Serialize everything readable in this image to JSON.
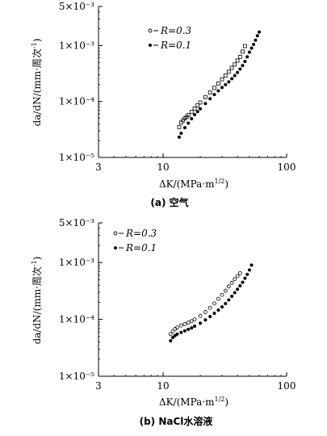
{
  "chart_data": [
    {
      "type": "scatter",
      "panel": "(a)",
      "caption": "(a) 空气",
      "xlabel": "ΔK/(MPa·m^1/2)",
      "ylabel": "da/dN/(mm·周次^-1)",
      "xscale": "log",
      "yscale": "log",
      "xlim": [
        3,
        100
      ],
      "ylim": [
        1e-05,
        0.005
      ],
      "xticks": [
        {
          "v": 3,
          "label": "3"
        },
        {
          "v": 10,
          "label": "10"
        },
        {
          "v": 100,
          "label": "100"
        }
      ],
      "yticks": [
        {
          "v": 1e-05,
          "label": "1×10⁻⁵"
        },
        {
          "v": 0.0001,
          "label": "1×10⁻⁴"
        },
        {
          "v": 0.001,
          "label": "1×10⁻³"
        },
        {
          "v": 0.005,
          "label": "5×10⁻³"
        }
      ],
      "legend_position": "top-center",
      "series": [
        {
          "name": "R=0.3",
          "marker": "open-square",
          "x": [
            13.5,
            14,
            14.5,
            15,
            15.5,
            16,
            17,
            18,
            19,
            20,
            22,
            24,
            26,
            28,
            30,
            32,
            34,
            36,
            38,
            40,
            42,
            44,
            46
          ],
          "y": [
            3.5e-05,
            4.2e-05,
            4.6e-05,
            5e-05,
            5.3e-05,
            5.7e-05,
            6.5e-05,
            7.5e-05,
            8.5e-05,
            9.6e-05,
            0.00012,
            0.000145,
            0.000175,
            0.00021,
            0.00025,
            0.00029,
            0.00034,
            0.0004,
            0.00046,
            0.00054,
            0.00063,
            0.00078,
            0.00098
          ]
        },
        {
          "name": "R=0.1",
          "marker": "filled-circle",
          "x": [
            13.5,
            14,
            15,
            16,
            17,
            18,
            19,
            20,
            22,
            24,
            26,
            28,
            30,
            32,
            34,
            36,
            38,
            40,
            42,
            44,
            46,
            48,
            50,
            52,
            54,
            56,
            58,
            60
          ],
          "y": [
            2.3e-05,
            2.7e-05,
            3.4e-05,
            4.1e-05,
            4.9e-05,
            5.8e-05,
            6.6e-05,
            7.4e-05,
            9.2e-05,
            0.000112,
            0.000133,
            0.000155,
            0.000178,
            0.0002,
            0.000225,
            0.000255,
            0.00029,
            0.00033,
            0.00038,
            0.00044,
            0.00052,
            0.00063,
            0.00076,
            0.0009,
            0.00105,
            0.00125,
            0.0015,
            0.00175
          ]
        }
      ]
    },
    {
      "type": "scatter",
      "panel": "(b)",
      "caption": "(b) NaCl水溶液",
      "xlabel": "ΔK/(MPa·m^1/2)",
      "ylabel": "da/dN/(mm·周次^-1)",
      "xscale": "log",
      "yscale": "log",
      "xlim": [
        3,
        100
      ],
      "ylim": [
        1e-05,
        0.005
      ],
      "xticks": [
        {
          "v": 3,
          "label": "3"
        },
        {
          "v": 10,
          "label": "10"
        },
        {
          "v": 100,
          "label": "100"
        }
      ],
      "yticks": [
        {
          "v": 1e-05,
          "label": "1×10⁻⁵"
        },
        {
          "v": 0.0001,
          "label": "1×10⁻⁴"
        },
        {
          "v": 0.001,
          "label": "1×10⁻³"
        },
        {
          "v": 0.005,
          "label": "5×10⁻³"
        }
      ],
      "legend_position": "top-left",
      "series": [
        {
          "name": "R=0.3",
          "marker": "open-circle",
          "x": [
            11.5,
            12,
            12.5,
            13,
            14,
            15,
            16,
            17,
            18,
            20,
            22,
            24,
            26,
            28,
            30,
            32,
            34,
            36,
            38,
            40,
            42
          ],
          "y": [
            5.5e-05,
            6.2e-05,
            6.8e-05,
            7.2e-05,
            7.8e-05,
            8.3e-05,
            8.8e-05,
            9.3e-05,
            0.0001,
            0.000115,
            0.000135,
            0.00016,
            0.00019,
            0.00023,
            0.00027,
            0.00032,
            0.00038,
            0.00044,
            0.00051,
            0.00058,
            0.00065
          ]
        },
        {
          "name": "R=0.1",
          "marker": "filled-circle",
          "x": [
            11.5,
            12,
            12.5,
            13,
            14,
            15,
            16,
            17,
            18,
            20,
            22,
            24,
            26,
            28,
            30,
            32,
            34,
            36,
            38,
            40,
            42,
            44,
            46,
            48,
            50,
            52
          ],
          "y": [
            4.2e-05,
            4.8e-05,
            5.2e-05,
            5.5e-05,
            5.9e-05,
            6.3e-05,
            6.7e-05,
            7.1e-05,
            7.6e-05,
            8.6e-05,
            9.8e-05,
            0.000112,
            0.000128,
            0.000146,
            0.000166,
            0.00019,
            0.00022,
            0.000255,
            0.000295,
            0.00034,
            0.00039,
            0.00045,
            0.00053,
            0.00062,
            0.00074,
            0.0009
          ]
        }
      ]
    }
  ]
}
